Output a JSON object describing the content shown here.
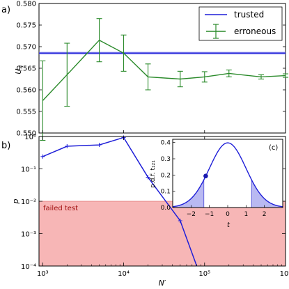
{
  "chart_data": [
    {
      "panel": "a)",
      "type": "line",
      "xscale": "log",
      "xlim": [
        900,
        1000000
      ],
      "ylim": [
        0.55,
        0.58
      ],
      "xlabel": "",
      "ylabel": "U4",
      "yticks": [
        "0.550",
        "0.555",
        "0.560",
        "0.565",
        "0.570",
        "0.575",
        "0.580"
      ],
      "yticks_values": [
        0.55,
        0.555,
        0.56,
        0.565,
        0.57,
        0.575,
        0.58
      ],
      "legend_position": "top-right",
      "series": [
        {
          "name": "trusted",
          "kind": "hline",
          "y": 0.5685,
          "band": [
            0.5682,
            0.5688
          ],
          "color": "#1f1fd8"
        },
        {
          "name": "erroneous",
          "kind": "errorbar",
          "color": "#2a8a2a",
          "x": [
            1000,
            2000,
            5000,
            10000,
            20000,
            50000,
            100000,
            200000,
            500000,
            1000000
          ],
          "y": [
            0.5575,
            0.5635,
            0.5715,
            0.5685,
            0.563,
            0.5625,
            0.563,
            0.5638,
            0.563,
            0.5633
          ],
          "yerr": [
            0.0092,
            0.0073,
            0.005,
            0.0042,
            0.003,
            0.0018,
            0.0012,
            0.0008,
            0.0005,
            0.0004
          ]
        }
      ]
    },
    {
      "panel": "b)",
      "type": "line",
      "xscale": "log",
      "yscale": "log",
      "xlim": [
        900,
        1000000
      ],
      "ylim": [
        0.0001,
        1
      ],
      "xlabel": "N′",
      "ylabel": "p",
      "xticks": [
        "10³",
        "10⁴",
        "10⁵",
        "10⁶"
      ],
      "xticks_values": [
        1000,
        10000,
        100000,
        1000000
      ],
      "yticks": [
        "10⁻⁴",
        "10⁻³",
        "10⁻²",
        "10⁻¹",
        "10⁰"
      ],
      "yticks_values": [
        0.0001,
        0.001,
        0.01,
        0.1,
        1
      ],
      "shaded_region": {
        "label": "failed test",
        "y_from": 0.0001,
        "y_to": 0.01,
        "color": "#f7b6b6",
        "label_color": "#a01010"
      },
      "series": [
        {
          "name": "",
          "color": "#1f1fd8",
          "x": [
            1000,
            2000,
            5000,
            10000,
            20000,
            50000,
            80000
          ],
          "y": [
            0.24,
            0.5,
            0.55,
            0.93,
            0.055,
            0.0025,
            0.0001
          ]
        }
      ]
    },
    {
      "panel": "(c)",
      "type": "line",
      "xlim": [
        -3,
        3
      ],
      "ylim": [
        0,
        0.42
      ],
      "xlabel": "t",
      "ylabel": "p.d.f. t₁₂₁",
      "xticks": [
        "−2",
        "−1",
        "0",
        "1",
        "2"
      ],
      "xticks_values": [
        -2,
        -1,
        0,
        1,
        2
      ],
      "yticks": [
        "0.0",
        "0.1",
        "0.2",
        "0.3",
        "0.4"
      ],
      "yticks_values": [
        0,
        0.1,
        0.2,
        0.3,
        0.4
      ],
      "curve": "t-distribution pdf, 121 degrees of freedom",
      "dof": 121,
      "shaded_tails": [
        [
          -3,
          -1.3
        ],
        [
          1.3,
          3
        ]
      ],
      "marker": {
        "x": -1.2,
        "y": 0.194
      },
      "color": "#1f1fd8",
      "fill_color": "#b9b9f2"
    }
  ]
}
